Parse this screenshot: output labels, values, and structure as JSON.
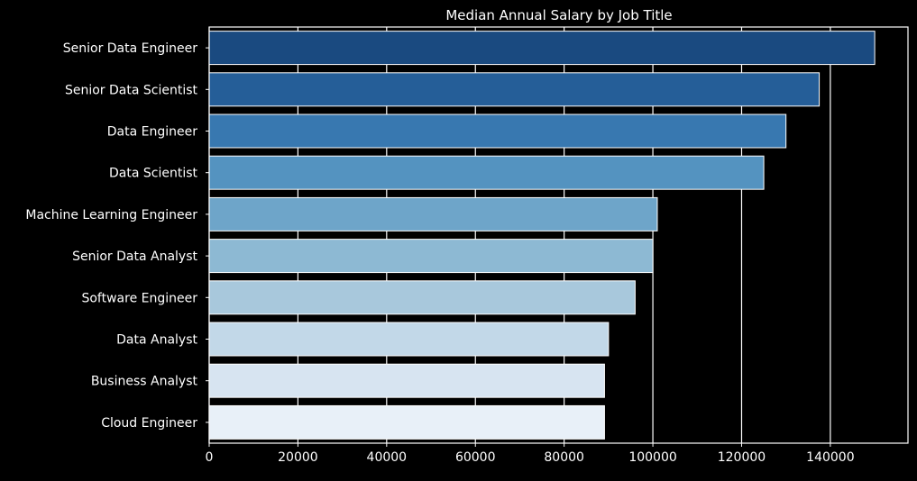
{
  "chart_data": {
    "type": "bar",
    "orientation": "horizontal",
    "title": "Median Annual Salary by Job Title",
    "xlabel": "",
    "ylabel": "",
    "categories": [
      "Senior Data Engineer",
      "Senior Data Scientist",
      "Data Engineer",
      "Data Scientist",
      "Machine Learning Engineer",
      "Senior Data Analyst",
      "Software Engineer",
      "Data Analyst",
      "Business Analyst",
      "Cloud Engineer"
    ],
    "values": [
      150000,
      137500,
      130000,
      125000,
      101000,
      100000,
      96000,
      90000,
      89100,
      89100
    ],
    "xlim": [
      0,
      157500
    ],
    "xticks": [
      0,
      20000,
      40000,
      60000,
      80000,
      100000,
      120000,
      140000
    ],
    "grid": true,
    "colors": [
      "#1a4a80",
      "#255e98",
      "#3878b0",
      "#5493c0",
      "#6ea5c9",
      "#8db9d3",
      "#a8c8dc",
      "#c2d8e8",
      "#d7e4f1",
      "#e8f0f8"
    ],
    "background": "#000000",
    "foreground": "#ffffff"
  }
}
